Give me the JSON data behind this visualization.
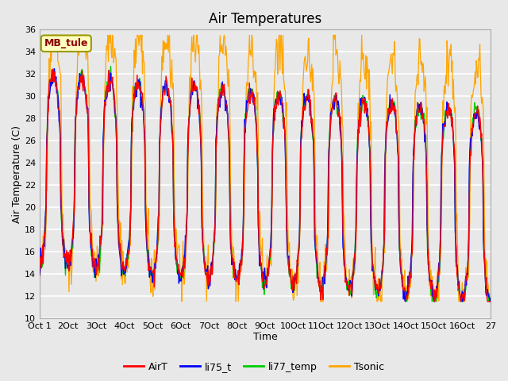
{
  "title": "Air Temperatures",
  "xlabel": "Time",
  "ylabel": "Air Temperature (C)",
  "ylim": [
    10,
    36
  ],
  "site_label": "MB_tule",
  "x_tick_labels": [
    "Oct 1",
    "2Oct",
    "3Oct",
    "4Oct",
    "5Oct",
    "6Oct",
    "7Oct",
    "8Oct",
    "9Oct",
    "10Oct",
    "11Oct",
    "12Oct",
    "13Oct",
    "14Oct",
    "15Oct",
    "16Oct",
    "27"
  ],
  "line_colors": {
    "AirT": "#FF0000",
    "li75_t": "#0000FF",
    "li77_temp": "#00CC00",
    "Tsonic": "#FFA500"
  },
  "legend_labels": [
    "AirT",
    "li75_t",
    "li77_temp",
    "Tsonic"
  ],
  "background_color": "#E8E8E8",
  "plot_bg_color": "#E8E8E8",
  "grid_color": "#FFFFFF",
  "title_fontsize": 12,
  "tick_fontsize": 8,
  "label_fontsize": 9
}
